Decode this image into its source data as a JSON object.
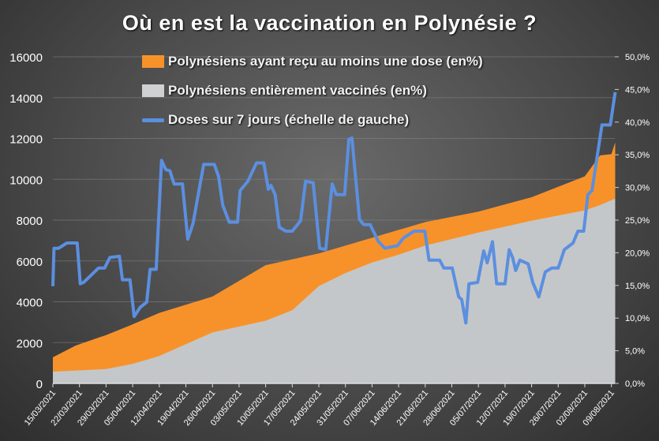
{
  "chart_data": {
    "type": "area+line",
    "title": "Où en est la vaccination  en Polynésie ?",
    "x_tick_labels": [
      "15/03/2021",
      "22/03/2021",
      "29/03/2021",
      "05/04/2021",
      "12/04/2021",
      "19/04/2021",
      "26/04/2021",
      "03/05/2021",
      "10/05/2021",
      "17/05/2021",
      "24/05/2021",
      "31/05/2021",
      "07/06/2021",
      "14/06/2021",
      "21/06/2021",
      "28/06/2021",
      "05/07/2021",
      "12/07/2021",
      "19/07/2021",
      "26/07/2021",
      "02/08/2021",
      "09/08/2021"
    ],
    "x_unit": "days since 15/03/2021",
    "y_left": {
      "ticks": [
        0,
        2000,
        4000,
        6000,
        8000,
        10000,
        12000,
        14000,
        16000
      ],
      "range": [
        0,
        16000
      ]
    },
    "y_right": {
      "ticks": [
        "0,0%",
        "5,0%",
        "10,0%",
        "15,0%",
        "20,0%",
        "25,0%",
        "30,0%",
        "35,0%",
        "40,0%",
        "45,0%",
        "50,0%"
      ],
      "range": [
        0,
        50
      ]
    },
    "grid": true,
    "legend_position": "top-center",
    "series": [
      {
        "name": "Polynésiens ayant reçu au moins une dose (en%)",
        "type": "area",
        "axis": "right",
        "color": "#f7922a",
        "points": [
          [
            0,
            4.0
          ],
          [
            6,
            5.8
          ],
          [
            14,
            7.4
          ],
          [
            20,
            8.8
          ],
          [
            28,
            10.8
          ],
          [
            42,
            13.3
          ],
          [
            56,
            18.1
          ],
          [
            70,
            19.9
          ],
          [
            84,
            22.3
          ],
          [
            98,
            24.7
          ],
          [
            112,
            26.3
          ],
          [
            126,
            28.5
          ],
          [
            140,
            31.7
          ],
          [
            144,
            34.9
          ],
          [
            147,
            35.1
          ],
          [
            148,
            36.9
          ]
        ]
      },
      {
        "name": "Polynésiens entièrement vaccinés (en%)",
        "type": "area",
        "axis": "right",
        "color": "#c4c7c9",
        "points": [
          [
            0,
            1.8
          ],
          [
            14,
            2.2
          ],
          [
            21,
            3.0
          ],
          [
            28,
            4.2
          ],
          [
            42,
            7.8
          ],
          [
            56,
            9.6
          ],
          [
            63,
            11.2
          ],
          [
            70,
            14.9
          ],
          [
            77,
            16.9
          ],
          [
            84,
            18.5
          ],
          [
            91,
            19.7
          ],
          [
            98,
            21.1
          ],
          [
            112,
            23.1
          ],
          [
            126,
            24.9
          ],
          [
            140,
            26.5
          ],
          [
            144,
            27.3
          ],
          [
            148,
            28.3
          ]
        ]
      },
      {
        "name": "Doses sur 7 jours (échelle de gauche)",
        "type": "line",
        "axis": "left",
        "color": "#5b8fe0",
        "points": [
          [
            0,
            4760
          ],
          [
            0.3,
            6620
          ],
          [
            1.5,
            6620
          ],
          [
            3.7,
            6880
          ],
          [
            6.4,
            6880
          ],
          [
            7.2,
            4880
          ],
          [
            8.1,
            4950
          ],
          [
            12,
            5650
          ],
          [
            13.6,
            5650
          ],
          [
            15,
            6170
          ],
          [
            17.5,
            6230
          ],
          [
            18.3,
            5080
          ],
          [
            20.3,
            5080
          ],
          [
            21.4,
            3280
          ],
          [
            23,
            3730
          ],
          [
            24.7,
            3980
          ],
          [
            25.6,
            5590
          ],
          [
            27.2,
            5590
          ],
          [
            28.6,
            10930
          ],
          [
            29.7,
            10480
          ],
          [
            30.8,
            10410
          ],
          [
            31.9,
            9770
          ],
          [
            34.1,
            9770
          ],
          [
            35.5,
            7070
          ],
          [
            36.9,
            7840
          ],
          [
            39.7,
            10730
          ],
          [
            42.5,
            10730
          ],
          [
            43.6,
            10150
          ],
          [
            44.7,
            8740
          ],
          [
            46.4,
            7900
          ],
          [
            48.6,
            7900
          ],
          [
            49.3,
            9450
          ],
          [
            51.3,
            9900
          ],
          [
            53.6,
            10800
          ],
          [
            55.5,
            10800
          ],
          [
            56.7,
            9510
          ],
          [
            57.4,
            9700
          ],
          [
            58.5,
            9250
          ],
          [
            59.6,
            7650
          ],
          [
            61.3,
            7460
          ],
          [
            63,
            7460
          ],
          [
            65.2,
            7970
          ],
          [
            66.5,
            9900
          ],
          [
            68.5,
            9830
          ],
          [
            70.2,
            6620
          ],
          [
            71.8,
            6560
          ],
          [
            73.5,
            9770
          ],
          [
            74.6,
            9250
          ],
          [
            76.8,
            9250
          ],
          [
            77.9,
            11950
          ],
          [
            78.7,
            12020
          ],
          [
            80.7,
            8030
          ],
          [
            81.8,
            7780
          ],
          [
            83.5,
            7780
          ],
          [
            85.7,
            6940
          ],
          [
            87.4,
            6620
          ],
          [
            90.7,
            6750
          ],
          [
            92.3,
            7130
          ],
          [
            95.1,
            7460
          ],
          [
            97.9,
            7460
          ],
          [
            99,
            6040
          ],
          [
            101.8,
            6040
          ],
          [
            102.9,
            5650
          ],
          [
            105.1,
            5650
          ],
          [
            106.8,
            4240
          ],
          [
            107.6,
            4110
          ],
          [
            108.7,
            2960
          ],
          [
            109.5,
            4880
          ],
          [
            111.8,
            4950
          ],
          [
            113.4,
            6490
          ],
          [
            114.3,
            5910
          ],
          [
            115.7,
            6940
          ],
          [
            116.8,
            4880
          ],
          [
            119,
            4880
          ],
          [
            120.1,
            6550
          ],
          [
            121,
            6170
          ],
          [
            121.8,
            5530
          ],
          [
            122.9,
            6040
          ],
          [
            125.1,
            5850
          ],
          [
            126.3,
            4950
          ],
          [
            127.9,
            4240
          ],
          [
            129.6,
            5460
          ],
          [
            131.3,
            5650
          ],
          [
            133,
            5650
          ],
          [
            134.6,
            6550
          ],
          [
            136.9,
            6880
          ],
          [
            138.2,
            7460
          ],
          [
            139.7,
            7460
          ],
          [
            140.8,
            9250
          ],
          [
            141.9,
            9450
          ],
          [
            144.5,
            12660
          ],
          [
            146.7,
            12660
          ],
          [
            148,
            14270
          ]
        ]
      }
    ]
  }
}
